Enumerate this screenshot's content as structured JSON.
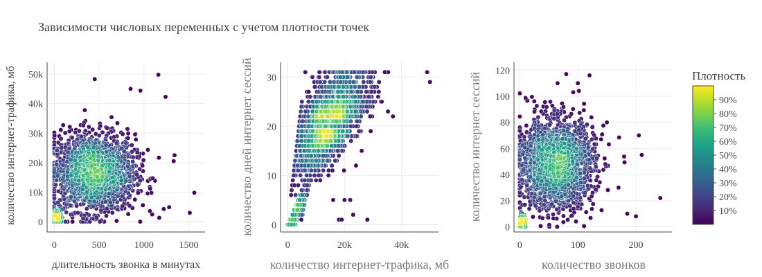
{
  "title": "Зависимости числовых переменных с учетом плотности точек",
  "colorbar": {
    "title": "Плотность",
    "tick_labels": [
      "10%",
      "20%",
      "30%",
      "40%",
      "50%",
      "60%",
      "70%",
      "80%",
      "90%"
    ],
    "tick_values": [
      10,
      20,
      30,
      40,
      50,
      60,
      70,
      80,
      90
    ],
    "range": [
      0,
      100
    ],
    "colorscale": [
      "#440154",
      "#482878",
      "#3e4989",
      "#31688e",
      "#26828e",
      "#1f9e89",
      "#35b779",
      "#6ece58",
      "#b5de2b",
      "#fde725"
    ]
  },
  "chart_data": [
    {
      "type": "scatter",
      "xlabel": "длительность звонка в минутах",
      "ylabel": "количество интернет-трафика, мб",
      "xlim": [
        -80,
        1680
      ],
      "ylim": [
        -3500,
        54000
      ],
      "xticks": [
        0,
        500,
        1000,
        1500
      ],
      "xtick_labels": [
        "0",
        "500",
        "1000",
        "1500"
      ],
      "yticks": [
        0,
        10000,
        20000,
        30000,
        40000,
        50000
      ],
      "ytick_labels": [
        "0",
        "10k",
        "20k",
        "30k",
        "40k",
        "50k"
      ],
      "clusters": [
        {
          "x": 440,
          "y": 16500,
          "sx": 230,
          "sy": 6500,
          "n": 1900
        },
        {
          "x": 25,
          "y": 1500,
          "sx": 25,
          "sy": 1400,
          "n": 150
        }
      ],
      "extra_points": [
        [
          1560,
          9800
        ],
        [
          1510,
          3000
        ],
        [
          1220,
          4300
        ],
        [
          1280,
          4900
        ],
        [
          450,
          48300
        ],
        [
          1160,
          49800
        ],
        [
          1240,
          42300
        ],
        [
          1340,
          22500
        ],
        [
          1330,
          20500
        ],
        [
          960,
          44400
        ],
        [
          1170,
          1300
        ],
        [
          850,
          45000
        ]
      ]
    },
    {
      "type": "scatter",
      "xlabel": "количество интернет-трафика, мб",
      "ylabel": "количество дней интернет сессий",
      "xlim": [
        -2500,
        53000
      ],
      "ylim": [
        -1.5,
        33
      ],
      "xticks": [
        0,
        20000,
        40000
      ],
      "xtick_labels": [
        "0",
        "20k",
        "40k"
      ],
      "yticks": [
        0,
        10,
        20,
        30
      ],
      "ytick_labels": [
        "0",
        "10",
        "20",
        "30"
      ],
      "extra_points": [
        [
          16000,
          5
        ],
        [
          20000,
          5
        ],
        [
          22000,
          5
        ],
        [
          23000,
          2
        ],
        [
          18000,
          1
        ],
        [
          19000,
          1
        ],
        [
          28000,
          1
        ],
        [
          49000,
          31
        ],
        [
          50000,
          29
        ],
        [
          37000,
          22
        ],
        [
          26000,
          15
        ],
        [
          24000,
          12
        ]
      ]
    },
    {
      "type": "scatter",
      "xlabel": "количество звонков",
      "ylabel": "количество интернет сессий",
      "xlim": [
        -10,
        262
      ],
      "ylim": [
        -4,
        126
      ],
      "xticks": [
        0,
        100,
        200
      ],
      "xtick_labels": [
        "0",
        "100",
        "200"
      ],
      "yticks": [
        0,
        20,
        40,
        60,
        80,
        100,
        120
      ],
      "ytick_labels": [
        "0",
        "20",
        "40",
        "60",
        "80",
        "100",
        "120"
      ],
      "clusters": [
        {
          "x": 62,
          "y": 48,
          "sx": 33,
          "sy": 17,
          "n": 1900
        },
        {
          "x": 3,
          "y": 4,
          "sx": 3,
          "sy": 3,
          "n": 150
        }
      ],
      "extra_points": [
        [
          242,
          22
        ],
        [
          200,
          8
        ],
        [
          185,
          10
        ],
        [
          170,
          30
        ],
        [
          205,
          70
        ],
        [
          80,
          117
        ],
        [
          120,
          116
        ],
        [
          100,
          110
        ],
        [
          65,
          110
        ],
        [
          210,
          55
        ],
        [
          150,
          80
        ],
        [
          92,
          103
        ]
      ]
    }
  ]
}
